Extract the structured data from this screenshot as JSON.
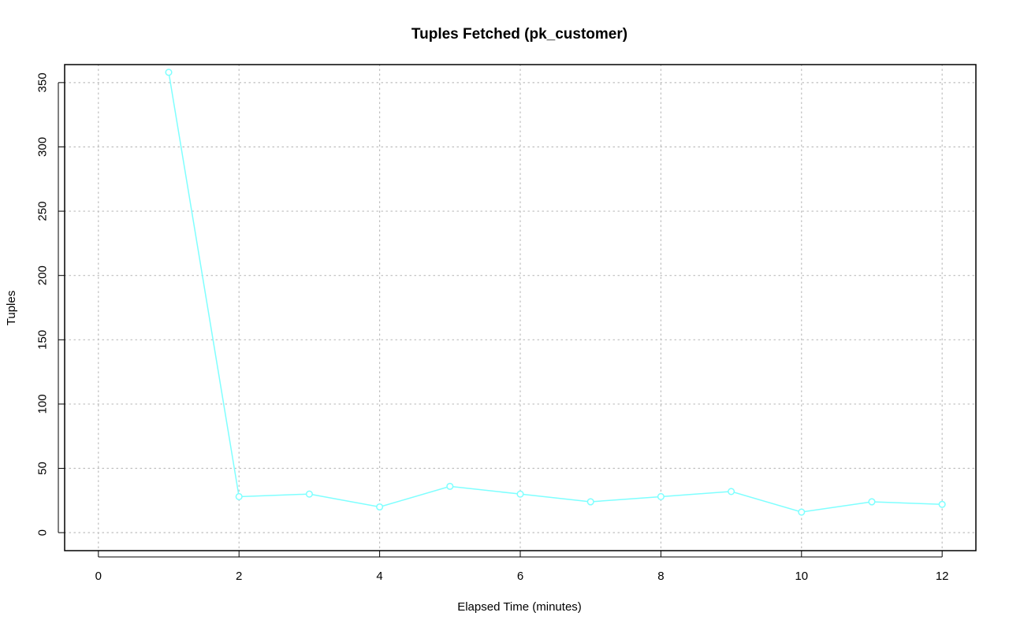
{
  "chart_data": {
    "type": "line",
    "title": "Tuples Fetched (pk_customer)",
    "xlabel": "Elapsed Time (minutes)",
    "ylabel": "Tuples",
    "xlim": [
      -0.48,
      12.48
    ],
    "ylim": [
      -14,
      364
    ],
    "xticks": [
      0,
      2,
      4,
      6,
      8,
      10,
      12
    ],
    "yticks": [
      0,
      50,
      100,
      150,
      200,
      250,
      300,
      350
    ],
    "grid": true,
    "legend": "none",
    "series": [
      {
        "color": "#7FFFFF",
        "marker": "open-circle",
        "x": [
          1,
          2,
          3,
          4,
          5,
          6,
          7,
          8,
          9,
          10,
          11,
          12
        ],
        "y": [
          358,
          28,
          30,
          20,
          36,
          30,
          24,
          28,
          32,
          16,
          24,
          22
        ]
      }
    ]
  }
}
